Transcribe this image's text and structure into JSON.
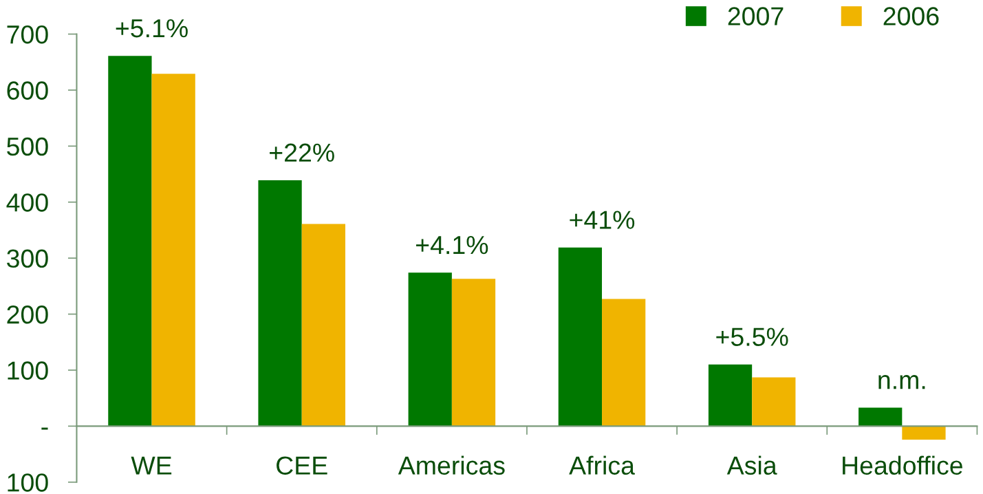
{
  "chart_data": {
    "type": "bar",
    "categories": [
      "WE",
      "CEE",
      "Americas",
      "Africa",
      "Asia",
      "Headoffice"
    ],
    "series": [
      {
        "name": "2007",
        "color": "#007800",
        "values": [
          661,
          439,
          274,
          319,
          110,
          33
        ]
      },
      {
        "name": "2006",
        "color": "#f0b400",
        "values": [
          629,
          361,
          263,
          227,
          87,
          -24
        ]
      }
    ],
    "ylim": [
      -100,
      700
    ],
    "yticks": [
      {
        "value": -100,
        "label": "100"
      },
      {
        "value": 0,
        "label": "-"
      },
      100,
      200,
      300,
      400,
      500,
      600,
      700
    ],
    "annotations": [
      {
        "text": "+5.1%",
        "x": "WE",
        "y": 661
      },
      {
        "text": "+22%",
        "x": "CEE",
        "y": 439
      },
      {
        "text": "+4.1%",
        "x": "Americas",
        "y": 274
      },
      {
        "text": "+41%",
        "x": "Africa",
        "y": 319
      },
      {
        "text": "+5.5%",
        "x": "Asia",
        "y": 110
      },
      {
        "text": "n.m.",
        "x": "Headoffice",
        "y": 33
      }
    ],
    "legend": "top right",
    "grid": false
  }
}
